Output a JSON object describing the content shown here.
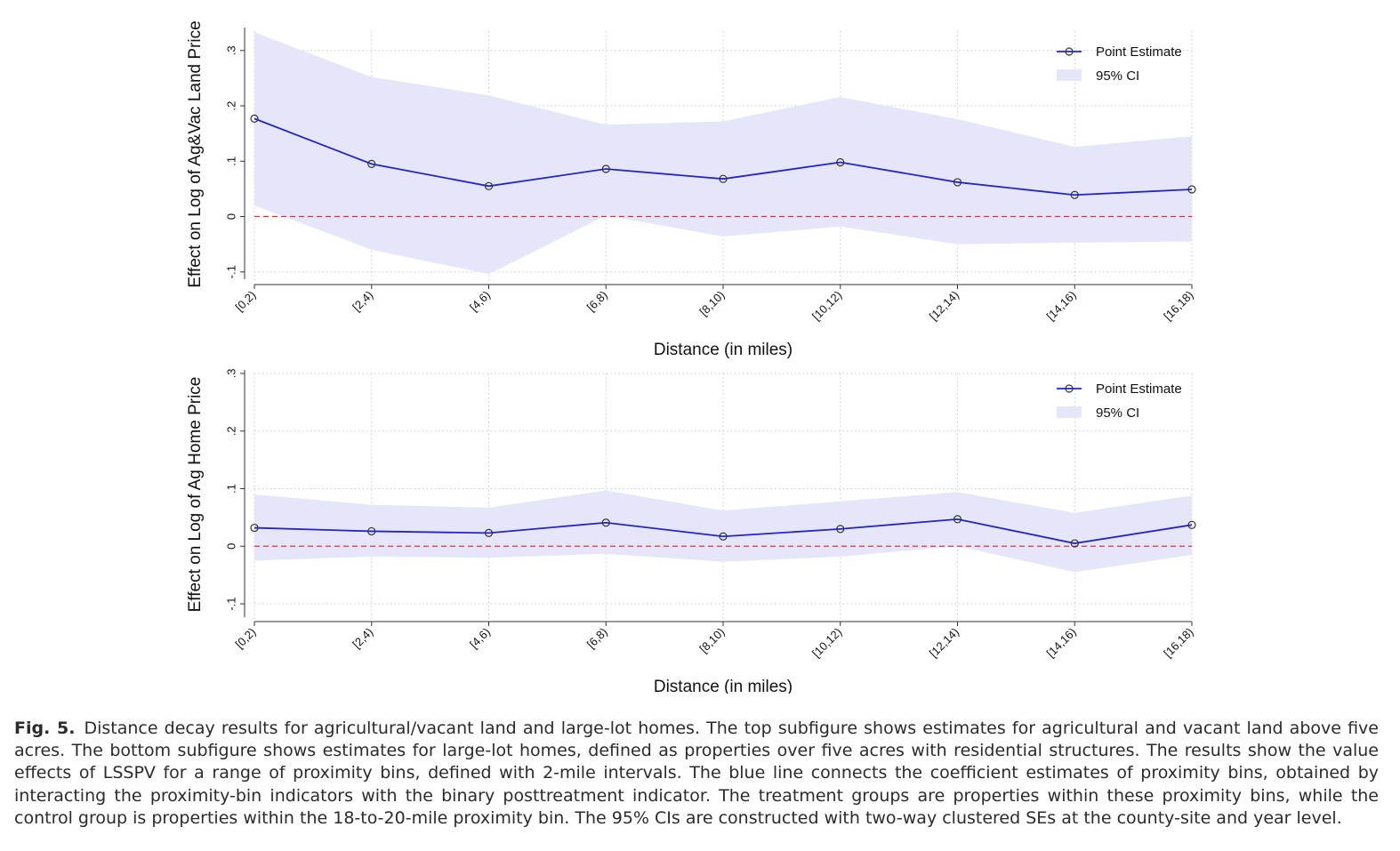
{
  "colors": {
    "line": "#2424c8",
    "ci_fill": "#e6e6fb",
    "zero_line": "#e0303a",
    "grid": "#c8c8c8",
    "axis": "#333333"
  },
  "chart_data": [
    {
      "type": "line",
      "ylabel": "Effect on Log of Ag&Vac Land Price",
      "xlabel": "Distance (in miles)",
      "categories": [
        "[0,2)",
        "[2,4)",
        "[4,6)",
        "[6,8)",
        "[8,10)",
        "[10,12)",
        "[12,14)",
        "[14,16)",
        "[16,18)"
      ],
      "yticks": [
        -0.1,
        0,
        0.1,
        0.2,
        0.3
      ],
      "ytick_labels": [
        "-.1",
        "0",
        ".1",
        ".2",
        ".3"
      ],
      "ylim": [
        -0.11,
        0.335
      ],
      "grid": true,
      "reference_line": 0,
      "legend": {
        "position": "top-right",
        "entries": [
          "Point Estimate",
          "95% CI"
        ]
      },
      "series": [
        {
          "name": "Point Estimate",
          "values": [
            0.177,
            0.095,
            0.055,
            0.086,
            0.068,
            0.098,
            0.062,
            0.039,
            0.049
          ]
        },
        {
          "name": "95% CI",
          "lower": [
            0.02,
            -0.06,
            -0.104,
            0.002,
            -0.036,
            -0.018,
            -0.05,
            -0.047,
            -0.045
          ],
          "upper": [
            0.333,
            0.252,
            0.219,
            0.166,
            0.172,
            0.216,
            0.176,
            0.126,
            0.145
          ]
        }
      ]
    },
    {
      "type": "line",
      "ylabel": "Effect on Log of Ag Home Price",
      "xlabel": "Distance (in miles)",
      "categories": [
        "[0,2)",
        "[2,4)",
        "[4,6)",
        "[6,8)",
        "[8,10)",
        "[10,12)",
        "[12,14)",
        "[14,16)",
        "[16,18)"
      ],
      "yticks": [
        -0.1,
        0,
        0.1,
        0.2,
        0.3
      ],
      "ytick_labels": [
        "-.1",
        "0",
        ".1",
        ".2",
        ".3"
      ],
      "ylim": [
        -0.12,
        0.3
      ],
      "grid": true,
      "reference_line": 0,
      "legend": {
        "position": "top-right",
        "entries": [
          "Point Estimate",
          "95% CI"
        ]
      },
      "series": [
        {
          "name": "Point Estimate",
          "values": [
            0.032,
            0.026,
            0.023,
            0.041,
            0.017,
            0.03,
            0.047,
            0.005,
            0.037
          ]
        },
        {
          "name": "95% CI",
          "lower": [
            -0.025,
            -0.018,
            -0.02,
            -0.013,
            -0.027,
            -0.018,
            0.0,
            -0.045,
            -0.015
          ],
          "upper": [
            0.09,
            0.072,
            0.067,
            0.097,
            0.062,
            0.078,
            0.094,
            0.058,
            0.088
          ]
        }
      ]
    }
  ],
  "caption": {
    "label": "Fig. 5.",
    "text": "Distance decay results for agricultural/vacant land and large-lot homes. The top subfigure shows estimates for agricultural and vacant land above five acres. The bottom subfigure shows estimates for large-lot homes, defined as properties over five acres with residential structures. The results show the value effects of LSSPV for a range of proximity bins, defined with 2-mile intervals. The blue line connects the coefficient estimates of proximity bins, obtained by interacting the proximity-bin indicators with the binary posttreatment indicator. The treatment groups are properties within these proximity bins, while the control group is properties within the 18-to-20-mile proximity bin. The 95% CIs are constructed with two-way clustered SEs at the county-site and year level."
  }
}
